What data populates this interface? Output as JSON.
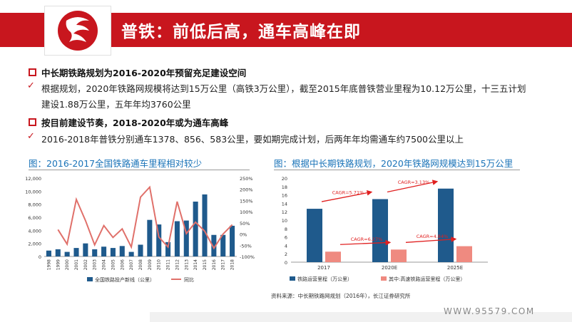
{
  "header": {
    "title": "普铁：前低后高，通车高峰在即"
  },
  "colors": {
    "brand_red": "#c8161e",
    "bar_blue": "#1f5a8c",
    "line_red": "#e0706a",
    "bar_pink": "#ef8a80",
    "title_blue": "#1a73b8"
  },
  "bullets": [
    {
      "head": "中长期铁路规划为2016-2020年预留充足建设空间",
      "lines": [
        "根据规划，2020年铁路网规模将达到15万公里（高铁3万公里），截至2015年底普铁营业里程为10.12万公里，十三五计划",
        "建设1.88万公里，五年年均3760公里"
      ]
    },
    {
      "head": "按目前建设节奏，2018-2020年或为通车高峰",
      "lines": [
        "2016-2018年普铁分别通车1378、856、583公里，要如期完成计划，后两年年均需通车约7500公里以上"
      ]
    }
  ],
  "figures": {
    "left_title": "图：2016-2017全国铁路通车里程相对较少",
    "right_title": "图：根据中长期铁路规划，2020年铁路网规模达到15万公里"
  },
  "source_note": "资料来源：中长期铁路网规划（2016年），长江证券研究所",
  "watermark": "WWW.95579.COM",
  "chart_data": [
    {
      "type": "bar",
      "categories": [
        "1998",
        "1999",
        "2000",
        "2001",
        "2002",
        "2003",
        "2004",
        "2005",
        "2006",
        "2007",
        "2008",
        "2009",
        "2010",
        "2011",
        "2012",
        "2013",
        "2014",
        "2015",
        "2016",
        "2017",
        "2018"
      ],
      "series": [
        {
          "name": "全国铁路投产新线（公里）",
          "type": "bar",
          "axis": "left",
          "values": [
            900,
            1100,
            700,
            1300,
            2000,
            1100,
            1500,
            1300,
            1600,
            700,
            1800,
            5600,
            4900,
            2200,
            5400,
            5500,
            8400,
            9500,
            3300,
            3300,
            4700
          ]
        },
        {
          "name": "同比",
          "type": "line",
          "axis": "right",
          "values": [
            null,
            20,
            -45,
            155,
            60,
            -48,
            38,
            -15,
            23,
            -58,
            165,
            210,
            -13,
            -58,
            145,
            2,
            53,
            13,
            -63,
            0,
            42
          ]
        }
      ],
      "ylim_left": [
        0,
        12000
      ],
      "yticks_left": [
        "0",
        "2,000",
        "4,000",
        "6,000",
        "8,000",
        "10,000",
        "12,000"
      ],
      "ylim_right": [
        -100,
        250
      ],
      "yticks_right": [
        "-100%",
        "-50%",
        "0%",
        "50%",
        "100%",
        "150%",
        "200%",
        "250%"
      ],
      "legend": "bottom"
    },
    {
      "type": "bar",
      "categories": [
        "2017",
        "2020E",
        "2025E"
      ],
      "series": [
        {
          "name": "铁路运营里程（万公里）",
          "values": [
            12.7,
            15.0,
            17.5
          ]
        },
        {
          "name": "其中:高速铁路运营里程（万公里）",
          "values": [
            2.5,
            3.0,
            3.8
          ]
        }
      ],
      "ylim": [
        0,
        20
      ],
      "yticks": [
        "0",
        "2",
        "4",
        "6",
        "8",
        "10",
        "12",
        "14",
        "16",
        "18",
        "20"
      ],
      "annotations": [
        "CAGR=5.71%",
        "CAGR=3.13%",
        "CAGR=6.27%",
        "CAGR=4.84%"
      ],
      "legend": "bottom"
    }
  ]
}
